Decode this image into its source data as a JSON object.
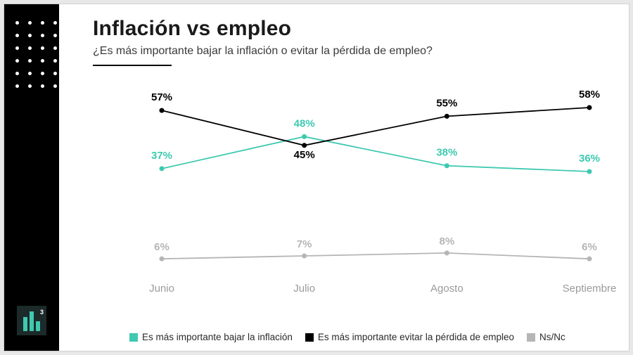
{
  "title": "Inflación vs empleo",
  "subtitle": "¿Es más importante bajar la inflación o evitar la pérdida de empleo?",
  "logo_exp": "3",
  "chart": {
    "type": "line",
    "categories": [
      "Junio",
      "Julio",
      "Agosto",
      "Septiembre"
    ],
    "ylim": [
      0,
      65
    ],
    "background_color": "#ffffff",
    "axis_label_color": "#9a9a9a",
    "axis_label_fontsize": 15,
    "value_label_fontsize": 15,
    "value_label_fontweight": "700",
    "marker_radius": 3.5,
    "line_width": 1.8,
    "series": [
      {
        "key": "inflation",
        "label": "Es más importante bajar la inflación",
        "color": "#3ec9b0",
        "values": [
          37,
          48,
          38,
          36
        ],
        "label_offsets": [
          -14,
          -14,
          -14,
          -14
        ]
      },
      {
        "key": "employment",
        "label": "Es más importante evitar la pérdida de empleo",
        "color": "#000000",
        "values": [
          57,
          45,
          55,
          58
        ],
        "label_offsets": [
          -14,
          18,
          -14,
          -14
        ]
      },
      {
        "key": "nsnc",
        "label": "Ns/Nc",
        "color": "#b5b5b5",
        "values": [
          6,
          7,
          8,
          6
        ],
        "label_offsets": [
          -12,
          -12,
          -12,
          -12
        ]
      }
    ]
  }
}
